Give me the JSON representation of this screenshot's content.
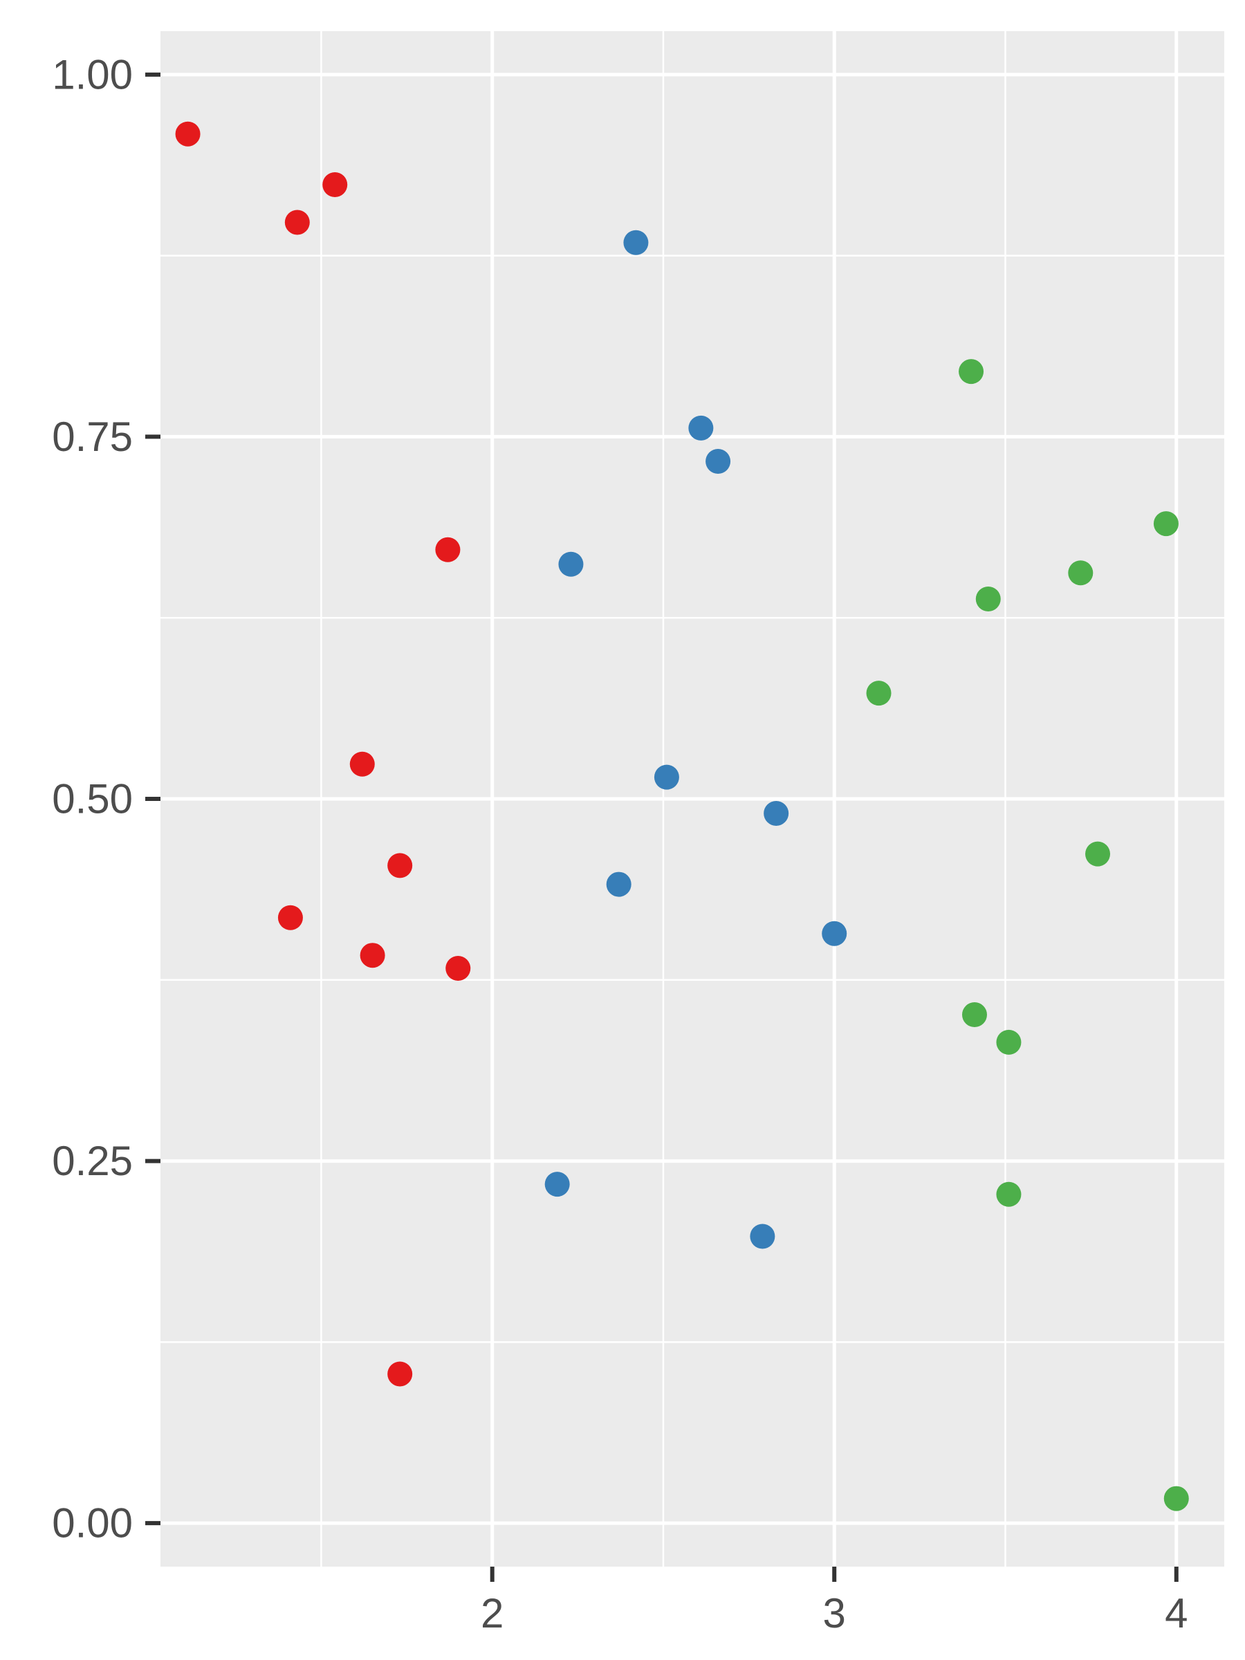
{
  "chart_data": {
    "type": "scatter",
    "title": "",
    "xlabel": "",
    "ylabel": "",
    "xlim": [
      1.03,
      4.14
    ],
    "ylim": [
      -0.03,
      1.03
    ],
    "x_ticks": [
      2,
      3,
      4
    ],
    "x_tick_labels": [
      "2",
      "3",
      "4"
    ],
    "x_minor_ticks": [
      1.5,
      2.5,
      3.5
    ],
    "y_ticks": [
      0.0,
      0.25,
      0.5,
      0.75,
      1.0
    ],
    "y_tick_labels": [
      "0.00",
      "0.25",
      "0.50",
      "0.75",
      "1.00"
    ],
    "y_minor_ticks": [
      0.125,
      0.375,
      0.625,
      0.875
    ],
    "grid": true,
    "legend": "none",
    "panel_color": "#EBEBEB",
    "grid_color": "#FFFFFF",
    "series": [
      {
        "color": "#E41A1C",
        "points": [
          [
            1.11,
            0.959
          ],
          [
            1.43,
            0.898
          ],
          [
            1.54,
            0.924
          ],
          [
            1.87,
            0.672
          ],
          [
            1.62,
            0.524
          ],
          [
            1.41,
            0.418
          ],
          [
            1.73,
            0.454
          ],
          [
            1.65,
            0.392
          ],
          [
            1.9,
            0.383
          ],
          [
            1.73,
            0.103
          ]
        ]
      },
      {
        "color": "#377EB8",
        "points": [
          [
            2.42,
            0.884
          ],
          [
            2.61,
            0.756
          ],
          [
            2.66,
            0.733
          ],
          [
            2.23,
            0.662
          ],
          [
            2.51,
            0.515
          ],
          [
            2.83,
            0.49
          ],
          [
            2.37,
            0.441
          ],
          [
            3.0,
            0.407
          ],
          [
            2.19,
            0.234
          ],
          [
            2.79,
            0.198
          ]
        ]
      },
      {
        "color": "#4DAF4A",
        "points": [
          [
            3.4,
            0.795
          ],
          [
            3.97,
            0.69
          ],
          [
            3.72,
            0.656
          ],
          [
            3.45,
            0.638
          ],
          [
            3.13,
            0.573
          ],
          [
            3.77,
            0.462
          ],
          [
            3.41,
            0.351
          ],
          [
            3.51,
            0.332
          ],
          [
            3.51,
            0.227
          ],
          [
            4.0,
            0.017
          ]
        ]
      }
    ]
  }
}
